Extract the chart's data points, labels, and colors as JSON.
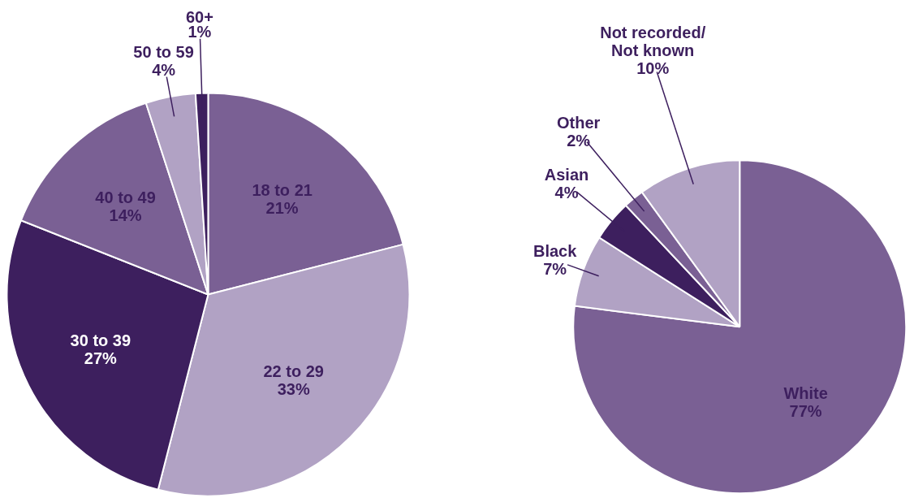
{
  "chart_data": [
    {
      "type": "pie",
      "categories": [
        "18 to 21",
        "22 to 29",
        "30 to 39",
        "40 to 49",
        "50 to 59",
        "60+"
      ],
      "values": [
        21,
        33,
        27,
        14,
        4,
        1
      ],
      "value_labels": [
        "21%",
        "33%",
        "27%",
        "14%",
        "4%",
        "1%"
      ],
      "colors": [
        "#7a6094",
        "#b1a2c4",
        "#3d1f5e",
        "#7a6094",
        "#b1a2c4",
        "#3d1f5e"
      ]
    },
    {
      "type": "pie",
      "categories": [
        "White",
        "Black",
        "Asian",
        "Other",
        "Not recorded/\nNot known"
      ],
      "values": [
        77,
        7,
        4,
        2,
        10
      ],
      "value_labels": [
        "77%",
        "7%",
        "4%",
        "2%",
        "10%"
      ],
      "colors": [
        "#7a6094",
        "#b1a2c4",
        "#3d1f5e",
        "#7a6094",
        "#b1a2c4"
      ]
    }
  ]
}
